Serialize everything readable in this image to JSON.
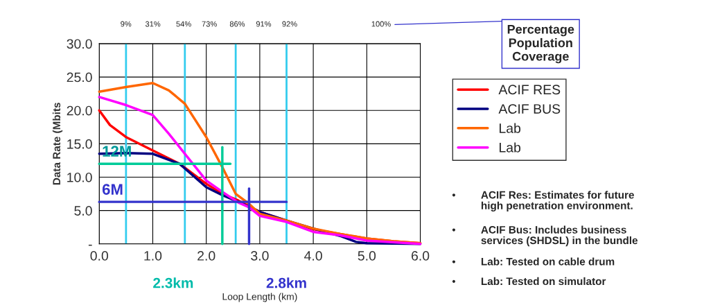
{
  "chart_data": {
    "type": "line",
    "xlabel": "Loop Length (km)",
    "ylabel": "Data Rate (Mbits",
    "xlim": [
      0,
      6
    ],
    "xticks": [
      {
        "value": 0,
        "label": "0.0"
      },
      {
        "value": 1,
        "label": "1.0"
      },
      {
        "value": 2,
        "label": "2.0"
      },
      {
        "value": 3,
        "label": "3.0"
      },
      {
        "value": 4,
        "label": "4.0"
      },
      {
        "value": 5,
        "label": "5.0"
      },
      {
        "value": 6,
        "label": "6.0"
      }
    ],
    "ylim": [
      0,
      30
    ],
    "yticks": [
      {
        "value": 0,
        "label": "-"
      },
      {
        "value": 5,
        "label": "5.0"
      },
      {
        "value": 10,
        "label": "10.0"
      },
      {
        "value": 15,
        "label": "15.0"
      },
      {
        "value": 20,
        "label": "20.0"
      },
      {
        "value": 25,
        "label": "25.0"
      },
      {
        "value": 30,
        "label": "30.0"
      }
    ],
    "grid": true,
    "legend": "right",
    "series": [
      {
        "name": "ACIF RES",
        "color": "#ff0000",
        "x": [
          0,
          0.2,
          0.5,
          1.0,
          1.5,
          2.0,
          2.3,
          2.6,
          3.0,
          3.5,
          4.0,
          4.5,
          5.0,
          5.5,
          6.0
        ],
        "values": [
          20,
          17.8,
          16,
          14,
          12,
          9,
          7.5,
          6.5,
          4.8,
          3.5,
          2.2,
          1.5,
          0.8,
          0.4,
          0.1
        ]
      },
      {
        "name": "ACIF BUS",
        "color": "#000080",
        "x": [
          0,
          0.5,
          1.0,
          1.5,
          2.0,
          2.3,
          2.6,
          3.0,
          3.5,
          4.0,
          4.5,
          4.8,
          5.0,
          6.0
        ],
        "values": [
          13.5,
          13.6,
          13.5,
          12,
          8.5,
          7.3,
          6.3,
          4.8,
          3.5,
          2.3,
          1.2,
          0.3,
          0.1,
          0
        ]
      },
      {
        "name": "Lab",
        "color": "#ff6600",
        "x": [
          0,
          0.5,
          1.0,
          1.3,
          1.6,
          2.0,
          2.3,
          2.55,
          2.8,
          3.0,
          3.5,
          4.0,
          4.5,
          5.0,
          5.5,
          6.0
        ],
        "values": [
          22.8,
          23.5,
          24.1,
          23,
          21,
          16,
          11.5,
          7.5,
          6,
          4.5,
          3.5,
          2.3,
          1.5,
          0.8,
          0.4,
          0.1
        ]
      },
      {
        "name": "Lab",
        "color": "#ff00ff",
        "x": [
          0,
          0.5,
          1.0,
          1.3,
          1.6,
          2.0,
          2.3,
          2.6,
          2.8,
          3.0,
          3.5,
          4.0,
          4.5,
          5.0,
          6.0
        ],
        "values": [
          22,
          20.8,
          19.3,
          16.5,
          13.5,
          9.5,
          7.8,
          6.2,
          5.5,
          4.2,
          3.3,
          1.8,
          1.3,
          0.5,
          0
        ]
      },
      {
        "color": "#00cc99",
        "x": [
          0,
          2.45
        ],
        "values": [
          12,
          12
        ]
      },
      {
        "color": "#00cc99",
        "x": [
          2.3,
          2.3
        ],
        "values": [
          0,
          14.5
        ]
      },
      {
        "color": "#3333cc",
        "x": [
          0,
          3.5
        ],
        "values": [
          6.3,
          6.3
        ]
      },
      {
        "color": "#3333cc",
        "x": [
          2.8,
          2.8
        ],
        "values": [
          0,
          8.3
        ]
      }
    ],
    "ref_lines": [
      {
        "axis": "x",
        "value": 0.5,
        "color": "#33ccee"
      },
      {
        "axis": "x",
        "value": 1.6,
        "color": "#33ccee"
      },
      {
        "axis": "x",
        "value": 2.55,
        "color": "#33ccee"
      },
      {
        "axis": "x",
        "value": 3.5,
        "color": "#33ccee"
      }
    ],
    "annotations": [
      {
        "text": "12M",
        "x": 0.05,
        "y": 12.6
      },
      {
        "text": "6M",
        "x": 0.05,
        "y": 6.9
      },
      "2.3km",
      "2.8km",
      "9%",
      "31%",
      "54%",
      "73%",
      "86%",
      "91%",
      "92%",
      "100%",
      "Percentage\nPopulation\nCoverage",
      "•",
      "•",
      "•",
      "•",
      "ACIF Res: Estimates for future\nhigh penetration environment.",
      "ACIF Bus: Includes business\nservices (SHDSL) in the bundle",
      "Lab: Tested on cable drum",
      "Lab: Tested on simulator"
    ]
  }
}
